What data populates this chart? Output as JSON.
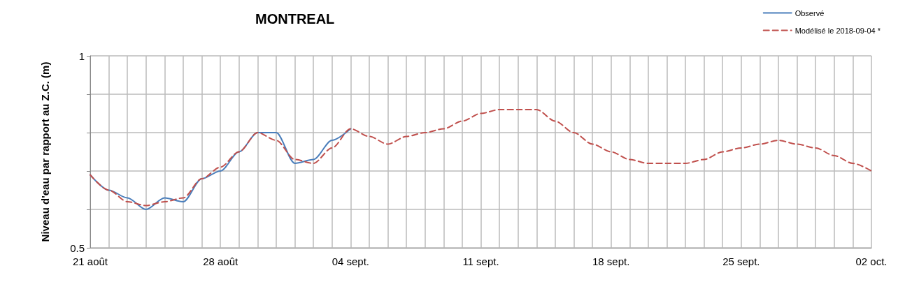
{
  "chart_data": {
    "type": "line",
    "title": "MONTREAL",
    "ylabel": "Niveau d'eau par rapport au Z.C. (m)",
    "x": [
      "2018-08-21",
      "2018-08-22",
      "2018-08-23",
      "2018-08-24",
      "2018-08-25",
      "2018-08-26",
      "2018-08-27",
      "2018-08-28",
      "2018-08-29",
      "2018-08-30",
      "2018-08-31",
      "2018-09-01",
      "2018-09-02",
      "2018-09-03",
      "2018-09-04",
      "2018-09-05",
      "2018-09-06",
      "2018-09-07",
      "2018-09-08",
      "2018-09-09",
      "2018-09-10",
      "2018-09-11",
      "2018-09-12",
      "2018-09-13",
      "2018-09-14",
      "2018-09-15",
      "2018-09-16",
      "2018-09-17",
      "2018-09-18",
      "2018-09-19",
      "2018-09-20",
      "2018-09-21",
      "2018-09-22",
      "2018-09-23",
      "2018-09-24",
      "2018-09-25",
      "2018-09-26",
      "2018-09-27",
      "2018-09-28",
      "2018-09-29",
      "2018-09-30",
      "2018-10-01",
      "2018-10-02"
    ],
    "series": [
      {
        "name": "Observé",
        "color": "#4a7ebb",
        "line_style": "solid",
        "x": [
          "2018-08-21",
          "2018-08-22",
          "2018-08-23",
          "2018-08-24",
          "2018-08-25",
          "2018-08-26",
          "2018-08-27",
          "2018-08-28",
          "2018-08-29",
          "2018-08-30",
          "2018-08-31",
          "2018-09-01",
          "2018-09-02",
          "2018-09-03",
          "2018-09-04"
        ],
        "values": [
          0.69,
          0.65,
          0.63,
          0.6,
          0.63,
          0.62,
          0.68,
          0.7,
          0.75,
          0.8,
          0.8,
          0.72,
          0.73,
          0.78,
          0.81
        ]
      },
      {
        "name": "Modélisé le 2018-09-04 *",
        "color": "#c0504d",
        "line_style": "dashed",
        "values": [
          0.69,
          0.65,
          0.62,
          0.61,
          0.62,
          0.63,
          0.68,
          0.71,
          0.75,
          0.8,
          0.78,
          0.73,
          0.72,
          0.76,
          0.81,
          0.79,
          0.77,
          0.79,
          0.8,
          0.81,
          0.83,
          0.85,
          0.86,
          0.86,
          0.86,
          0.83,
          0.8,
          0.77,
          0.75,
          0.73,
          0.72,
          0.72,
          0.72,
          0.73,
          0.75,
          0.76,
          0.77,
          0.78,
          0.77,
          0.76,
          0.74,
          0.72,
          0.7
        ]
      }
    ],
    "xlim": [
      "2018-08-21",
      "2018-10-02"
    ],
    "xticks": [
      {
        "value": "2018-08-21",
        "label": "21 août"
      },
      {
        "value": "2018-08-22",
        "label": null
      },
      {
        "value": "2018-08-23",
        "label": null
      },
      {
        "value": "2018-08-24",
        "label": null
      },
      {
        "value": "2018-08-25",
        "label": null
      },
      {
        "value": "2018-08-26",
        "label": null
      },
      {
        "value": "2018-08-27",
        "label": null
      },
      {
        "value": "2018-08-28",
        "label": "28 août"
      },
      {
        "value": "2018-08-29",
        "label": null
      },
      {
        "value": "2018-08-30",
        "label": null
      },
      {
        "value": "2018-08-31",
        "label": null
      },
      {
        "value": "2018-09-01",
        "label": null
      },
      {
        "value": "2018-09-02",
        "label": null
      },
      {
        "value": "2018-09-03",
        "label": null
      },
      {
        "value": "2018-09-04",
        "label": "04 sept."
      },
      {
        "value": "2018-09-05",
        "label": null
      },
      {
        "value": "2018-09-06",
        "label": null
      },
      {
        "value": "2018-09-07",
        "label": null
      },
      {
        "value": "2018-09-08",
        "label": null
      },
      {
        "value": "2018-09-09",
        "label": null
      },
      {
        "value": "2018-09-10",
        "label": null
      },
      {
        "value": "2018-09-11",
        "label": "11 sept."
      },
      {
        "value": "2018-09-12",
        "label": null
      },
      {
        "value": "2018-09-13",
        "label": null
      },
      {
        "value": "2018-09-14",
        "label": null
      },
      {
        "value": "2018-09-15",
        "label": null
      },
      {
        "value": "2018-09-16",
        "label": null
      },
      {
        "value": "2018-09-17",
        "label": null
      },
      {
        "value": "2018-09-18",
        "label": "18 sept."
      },
      {
        "value": "2018-09-19",
        "label": null
      },
      {
        "value": "2018-09-20",
        "label": null
      },
      {
        "value": "2018-09-21",
        "label": null
      },
      {
        "value": "2018-09-22",
        "label": null
      },
      {
        "value": "2018-09-23",
        "label": null
      },
      {
        "value": "2018-09-24",
        "label": null
      },
      {
        "value": "2018-09-25",
        "label": "25 sept."
      },
      {
        "value": "2018-09-26",
        "label": null
      },
      {
        "value": "2018-09-27",
        "label": null
      },
      {
        "value": "2018-09-28",
        "label": null
      },
      {
        "value": "2018-09-29",
        "label": null
      },
      {
        "value": "2018-09-30",
        "label": null
      },
      {
        "value": "2018-10-01",
        "label": null
      },
      {
        "value": "2018-10-02",
        "label": "02 oct."
      }
    ],
    "ylim": [
      0.5,
      1
    ],
    "yticks": [
      0.5,
      {
        "value": 0.6,
        "label": null
      },
      {
        "value": 0.7,
        "label": null
      },
      {
        "value": 0.8,
        "label": null
      },
      {
        "value": 0.9,
        "label": null
      },
      1
    ],
    "grid": true,
    "legend": "top right",
    "marker": "none"
  }
}
